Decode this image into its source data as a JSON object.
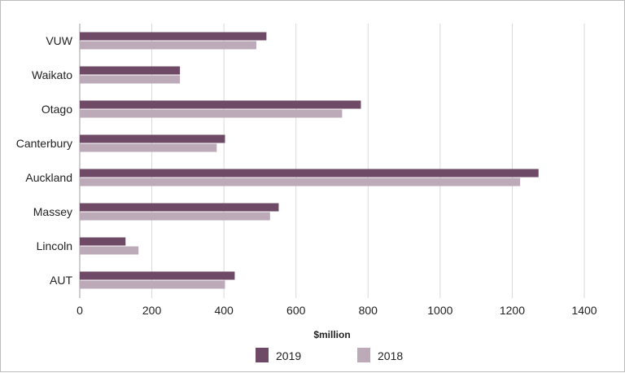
{
  "chart_data": {
    "type": "bar",
    "orientation": "horizontal",
    "title": "",
    "xlabel": "$million",
    "ylabel": "",
    "xlim": [
      0,
      1400
    ],
    "xticks": [
      0,
      200,
      400,
      600,
      800,
      1000,
      1200,
      1400
    ],
    "grid": true,
    "legend_position": "bottom",
    "categories": [
      "VUW",
      "Waikato",
      "Otago",
      "Canterbury",
      "Auckland",
      "Massey",
      "Lincoln",
      "AUT"
    ],
    "series": [
      {
        "name": "2019",
        "color": "#6e4a66",
        "values": [
          518,
          278,
          780,
          403,
          1273,
          552,
          127,
          430
        ]
      },
      {
        "name": "2018",
        "color": "#bcaab9",
        "values": [
          490,
          278,
          728,
          380,
          1222,
          528,
          163,
          403
        ]
      }
    ]
  }
}
